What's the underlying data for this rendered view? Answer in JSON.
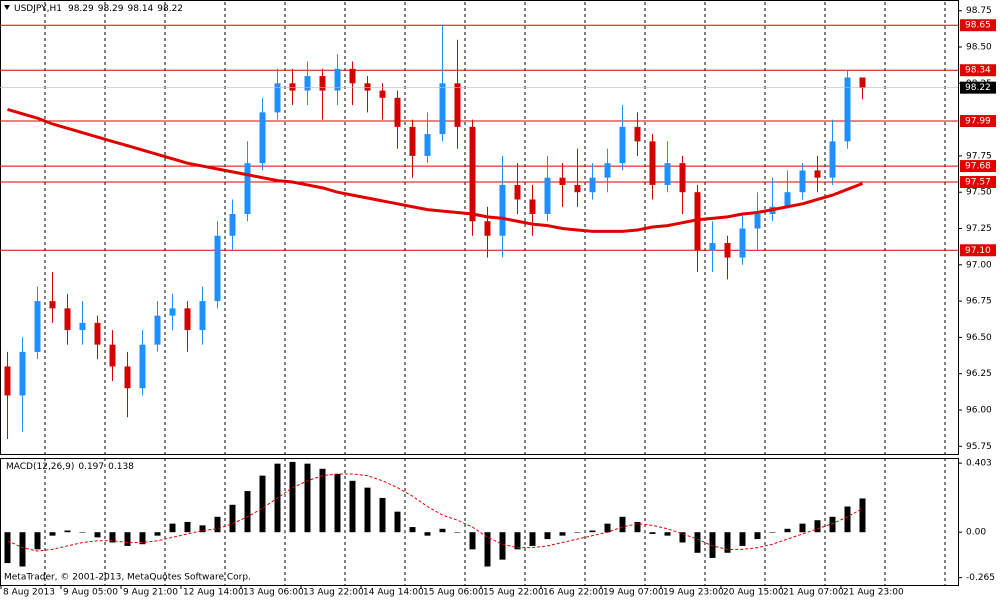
{
  "chart_data": {
    "type": "candlestick",
    "symbol": "USDJPY,H1",
    "bull_color": "#1e90ff",
    "bear_color": "#d40000",
    "open": [
      96.3,
      96.1,
      96.4,
      96.75,
      96.7,
      96.55,
      96.6,
      96.45,
      96.3,
      96.15,
      96.45,
      96.65,
      96.7,
      96.55,
      96.75,
      97.2,
      97.35,
      97.7,
      98.05,
      98.25,
      98.2,
      98.3,
      98.2,
      98.35,
      98.25,
      98.2,
      98.15,
      97.95,
      97.75,
      97.9,
      98.25,
      97.95,
      97.3,
      97.2,
      97.55,
      97.45,
      97.35,
      97.6,
      97.55,
      97.5,
      97.6,
      97.7,
      97.95,
      97.85,
      97.55,
      97.7,
      97.5,
      97.1,
      97.15,
      97.05,
      97.25,
      97.35,
      97.4,
      97.5,
      97.65,
      97.6,
      97.85,
      98.29
    ],
    "high": [
      96.4,
      96.5,
      96.85,
      96.95,
      96.8,
      96.75,
      96.65,
      96.55,
      96.4,
      96.55,
      96.75,
      96.8,
      96.75,
      96.85,
      97.3,
      97.45,
      97.85,
      98.15,
      98.35,
      98.35,
      98.4,
      98.35,
      98.45,
      98.4,
      98.3,
      98.25,
      98.2,
      98.0,
      98.05,
      98.65,
      98.55,
      98.0,
      97.4,
      97.75,
      97.7,
      97.55,
      97.75,
      97.7,
      97.8,
      97.7,
      97.8,
      98.1,
      98.05,
      97.9,
      97.85,
      97.75,
      97.55,
      97.3,
      97.2,
      97.35,
      97.5,
      97.6,
      97.65,
      97.7,
      97.75,
      98.0,
      98.34,
      98.29
    ],
    "low": [
      95.8,
      95.85,
      96.35,
      96.6,
      96.45,
      96.45,
      96.35,
      96.2,
      95.95,
      96.1,
      96.4,
      96.55,
      96.4,
      96.45,
      96.7,
      97.1,
      97.3,
      97.65,
      98.0,
      98.1,
      98.1,
      98.0,
      98.1,
      98.1,
      98.05,
      98.0,
      97.8,
      97.6,
      97.7,
      97.85,
      97.8,
      97.2,
      97.05,
      97.05,
      97.35,
      97.2,
      97.3,
      97.4,
      97.4,
      97.45,
      97.5,
      97.65,
      97.75,
      97.45,
      97.5,
      97.35,
      96.95,
      96.95,
      96.9,
      97.0,
      97.1,
      97.3,
      97.4,
      97.45,
      97.5,
      97.55,
      97.8,
      98.14
    ],
    "close": [
      96.1,
      96.4,
      96.75,
      96.7,
      96.55,
      96.6,
      96.45,
      96.3,
      96.15,
      96.45,
      96.65,
      96.7,
      96.55,
      96.75,
      97.2,
      97.35,
      97.7,
      98.05,
      98.25,
      98.2,
      98.3,
      98.2,
      98.35,
      98.25,
      98.2,
      98.15,
      97.95,
      97.75,
      97.9,
      98.25,
      97.95,
      97.3,
      97.2,
      97.55,
      97.45,
      97.35,
      97.6,
      97.55,
      97.5,
      97.6,
      97.7,
      97.95,
      97.85,
      97.55,
      97.7,
      97.5,
      97.1,
      97.15,
      97.05,
      97.25,
      97.35,
      97.4,
      97.5,
      97.65,
      97.6,
      97.85,
      98.29,
      98.22
    ],
    "ma": {
      "color": "#e00000",
      "values": [
        98.07,
        98.04,
        98.01,
        97.97,
        97.94,
        97.91,
        97.88,
        97.85,
        97.82,
        97.79,
        97.76,
        97.73,
        97.7,
        97.68,
        97.66,
        97.64,
        97.62,
        97.6,
        97.58,
        97.57,
        97.55,
        97.53,
        97.5,
        97.48,
        97.46,
        97.44,
        97.42,
        97.4,
        97.38,
        97.37,
        97.36,
        97.35,
        97.33,
        97.32,
        97.3,
        97.28,
        97.27,
        97.25,
        97.24,
        97.23,
        97.23,
        97.23,
        97.24,
        97.26,
        97.27,
        97.29,
        97.31,
        97.32,
        97.33,
        97.35,
        97.36,
        97.38,
        97.4,
        97.42,
        97.45,
        97.48,
        97.52,
        97.56
      ]
    },
    "ylim": [
      95.69,
      98.81
    ],
    "yticks": [
      98.75,
      {
        "value": 98.5,
        "label": "98.50"
      },
      98.25,
      97.75,
      {
        "value": 97.5,
        "label": "97.50"
      },
      97.25,
      {
        "value": 97.0,
        "label": "97.00"
      },
      96.75,
      {
        "value": 96.5,
        "label": "96.50"
      },
      96.25,
      {
        "value": 96.0,
        "label": "96.00"
      },
      95.75
    ],
    "level_color": "#e00000",
    "levels": [
      98.65,
      98.34,
      97.99,
      97.68,
      97.57,
      {
        "value": 97.1,
        "label": "97.10"
      }
    ],
    "xticks": [
      {
        "value": 0,
        "label": "8 Aug 2013"
      },
      {
        "value": 4,
        "label": "9 Aug 05:00"
      },
      {
        "value": 8,
        "label": "9 Aug 21:00"
      },
      {
        "value": 12,
        "label": "12 Aug 14:00"
      },
      {
        "value": 16,
        "label": "13 Aug 06:00"
      },
      {
        "value": 20,
        "label": "13 Aug 22:00"
      },
      {
        "value": 24,
        "label": "14 Aug 14:00"
      },
      {
        "value": 28,
        "label": "15 Aug 06:00"
      },
      {
        "value": 32,
        "label": "15 Aug 22:00"
      },
      {
        "value": 36,
        "label": "16 Aug 22:00"
      },
      {
        "value": 40,
        "label": "19 Aug 07:00"
      },
      {
        "value": 44,
        "label": "19 Aug 23:00"
      },
      {
        "value": 48,
        "label": "20 Aug 15:00"
      },
      {
        "value": 52,
        "label": "21 Aug 07:00"
      },
      {
        "value": 56,
        "label": "21 Aug 23:00"
      }
    ],
    "macd": {
      "title": "MACD(12,26,9)",
      "histogram": [
        -0.18,
        -0.2,
        -0.1,
        -0.02,
        0.01,
        0.0,
        -0.03,
        -0.06,
        -0.08,
        -0.07,
        -0.02,
        0.05,
        0.06,
        0.04,
        0.09,
        0.16,
        0.24,
        0.33,
        0.4,
        0.41,
        0.4,
        0.37,
        0.34,
        0.3,
        0.26,
        0.2,
        0.12,
        0.03,
        -0.02,
        0.02,
        0.0,
        -0.1,
        -0.2,
        -0.16,
        -0.1,
        -0.08,
        -0.04,
        -0.02,
        0.0,
        0.01,
        0.05,
        0.09,
        0.06,
        -0.01,
        -0.02,
        -0.06,
        -0.12,
        -0.15,
        -0.12,
        -0.08,
        -0.04,
        0.0,
        0.02,
        0.05,
        0.07,
        0.09,
        0.15,
        0.197
      ],
      "signal": [
        -0.05,
        -0.09,
        -0.11,
        -0.1,
        -0.08,
        -0.06,
        -0.05,
        -0.05,
        -0.06,
        -0.06,
        -0.05,
        -0.03,
        -0.01,
        0.01,
        0.02,
        0.05,
        0.09,
        0.14,
        0.2,
        0.26,
        0.3,
        0.33,
        0.34,
        0.34,
        0.33,
        0.3,
        0.26,
        0.21,
        0.15,
        0.1,
        0.07,
        0.03,
        -0.03,
        -0.07,
        -0.09,
        -0.09,
        -0.08,
        -0.06,
        -0.04,
        -0.02,
        0.0,
        0.03,
        0.05,
        0.04,
        0.02,
        -0.01,
        -0.04,
        -0.08,
        -0.1,
        -0.1,
        -0.09,
        -0.07,
        -0.04,
        -0.01,
        0.02,
        0.05,
        0.09,
        0.138
      ],
      "signal_color": "#e00000",
      "ylim": [
        -0.308,
        0.433
      ],
      "yticks": [
        0.403,
        {
          "value": 0,
          "label": "0.00"
        },
        -0.265
      ]
    },
    "footer": "MetaTrader, © 2001-2013, MetaQuotes Software Corp."
  }
}
